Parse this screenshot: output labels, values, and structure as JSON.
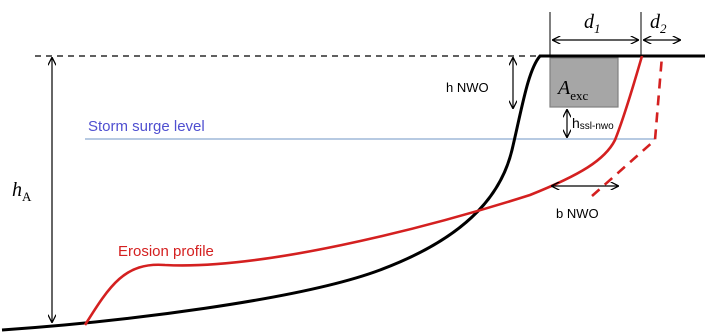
{
  "labels": {
    "d1": "d",
    "d1_sub": "1",
    "d2": "d",
    "d2_sub": "2",
    "h_nwo": "h NWO",
    "a_exc": "A",
    "a_exc_sub": "exc",
    "storm_surge": "Storm surge level",
    "h_ssl": "h",
    "h_ssl_sub": "ssl-nwo",
    "h_a": "h",
    "h_a_sub": "A",
    "b_nwo": "b NWO",
    "erosion": "Erosion profile"
  },
  "colors": {
    "initial_profile": "#000000",
    "erosion_profile": "#d42020",
    "storm_surge_line": "#9fb8d8",
    "excavation_fill": "#a6a6a6",
    "storm_surge_text": "#4f4fd0"
  }
}
